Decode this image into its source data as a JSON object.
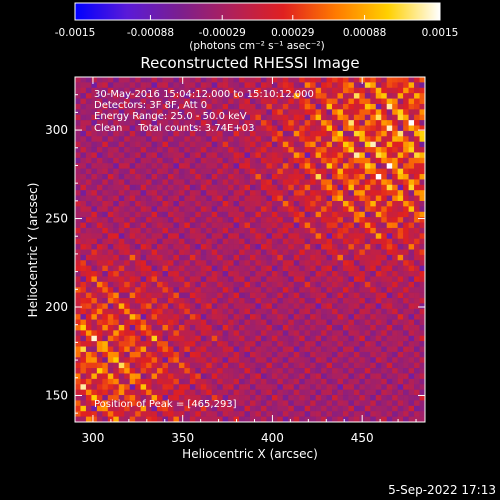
{
  "chart_data": {
    "type": "heatmap",
    "title": "Reconstructed RHESSI Image",
    "xlabel": "Heliocentric X (arcsec)",
    "ylabel": "Heliocentric Y (arcsec)",
    "xlim": [
      290,
      485
    ],
    "ylim": [
      135,
      330
    ],
    "x_ticks": [
      300,
      350,
      400,
      450
    ],
    "y_ticks": [
      150,
      200,
      250,
      300
    ],
    "annotations": [
      "30-May-2016 15:04:12.000 to 15:10:12.000",
      "Detectors: 3F 8F, Att 0",
      "Energy Range: 25.0 - 50.0 keV",
      "Clean     Total counts: 3.74E+03"
    ],
    "peak_label": "Position of Peak = [465,293]",
    "peak": [
      465,
      293
    ],
    "colorbar": {
      "min": -0.0015,
      "max": 0.0015,
      "tick_labels": [
        "-0.0015",
        "-0.00088",
        "-0.00029",
        "0.00029",
        "0.00088",
        "0.0015"
      ],
      "unit_label": "(photons cm⁻² s⁻¹ asec⁻²)",
      "colormap_stops": [
        "#0000ff",
        "#5a1ad8",
        "#7b1f8f",
        "#b0205a",
        "#e02020",
        "#ff7a00",
        "#ffd000",
        "#ffffff"
      ]
    },
    "timestamp": "5-Sep-2022 17:13",
    "grid": false
  }
}
